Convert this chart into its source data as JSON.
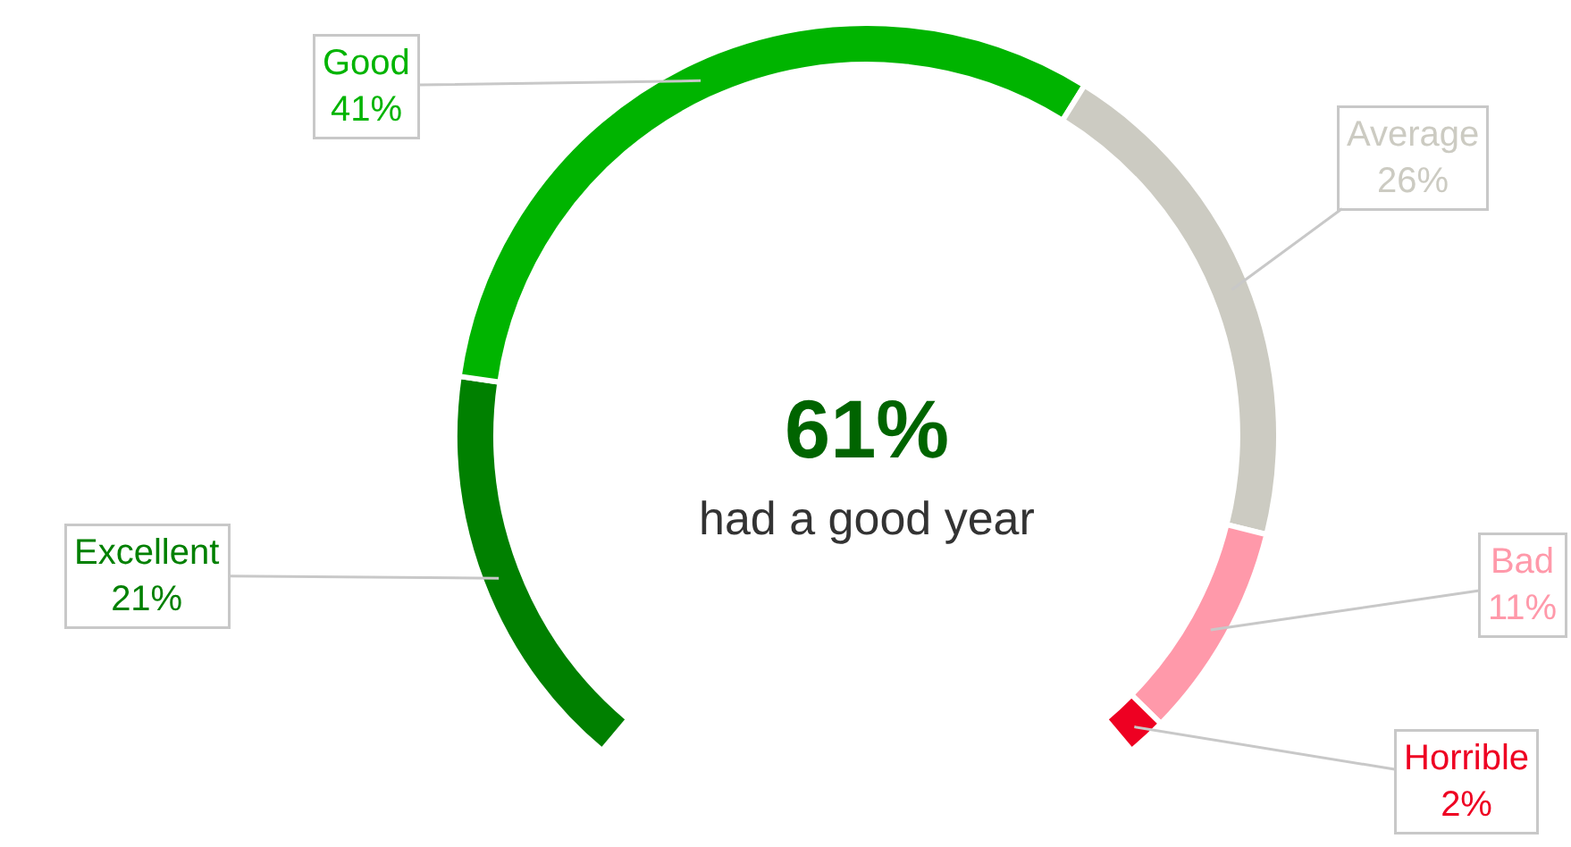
{
  "chart_data": {
    "type": "donut",
    "categories": [
      "Excellent",
      "Good",
      "Average",
      "Bad",
      "Horrible"
    ],
    "values": [
      21,
      41,
      26,
      11,
      2
    ],
    "value_labels": [
      "21%",
      "41%",
      "26%",
      "11%",
      "2%"
    ],
    "colors": [
      "#008000",
      "#00b400",
      "#cccbc2",
      "#ff99aa",
      "#ee0022"
    ],
    "annotations": [
      "61%",
      "had a good year"
    ],
    "legend": false
  }
}
